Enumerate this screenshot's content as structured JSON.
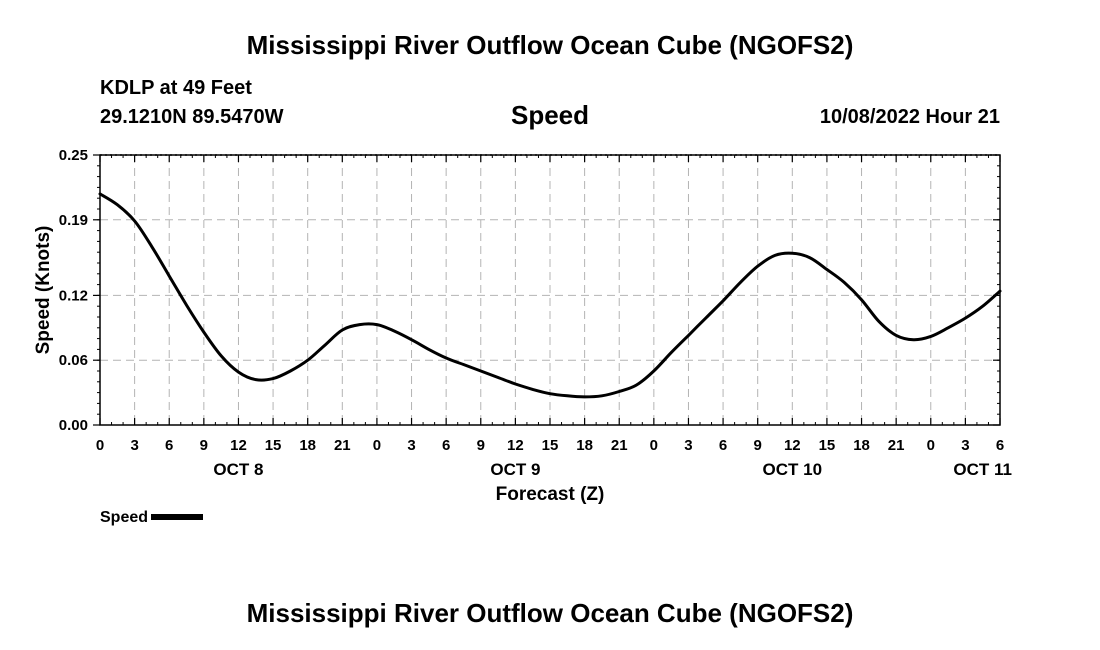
{
  "header": {
    "title": "Mississippi River Outflow Ocean Cube (NGOFS2)",
    "station": "KDLP at 49 Feet",
    "coords": "29.1210N  89.5470W",
    "subtitle": "Speed",
    "datetime": "10/08/2022 Hour 21"
  },
  "footer": {
    "title": "Mississippi River Outflow Ocean Cube (NGOFS2)"
  },
  "legend": {
    "label": "Speed",
    "color": "#000000"
  },
  "chart_data": {
    "type": "line",
    "title": "Speed",
    "xlabel": "Forecast (Z)",
    "ylabel": "Speed (Knots)",
    "xlim": [
      0,
      78
    ],
    "ylim": [
      0,
      0.25
    ],
    "grid": true,
    "yticks": [
      0.0,
      0.06,
      0.12,
      0.19,
      0.25
    ],
    "ytick_labels": [
      "0.00",
      "0.06",
      "0.12",
      "0.19",
      "0.25"
    ],
    "xtick_labels": [
      "0",
      "3",
      "6",
      "9",
      "12",
      "15",
      "18",
      "21",
      "0",
      "3",
      "6",
      "9",
      "12",
      "15",
      "18",
      "21",
      "0",
      "3",
      "6",
      "9",
      "12",
      "15",
      "18",
      "21",
      "0",
      "3",
      "6"
    ],
    "day_labels": [
      {
        "label": "OCT 8",
        "x": 12
      },
      {
        "label": "OCT 9",
        "x": 36
      },
      {
        "label": "OCT 10",
        "x": 60
      },
      {
        "label": "OCT 11",
        "x": 76.5
      }
    ],
    "series": [
      {
        "name": "Speed",
        "color": "#000000",
        "x": [
          0,
          1.5,
          3,
          4.5,
          6,
          7.5,
          9,
          10.5,
          12,
          13.5,
          15,
          16.5,
          18,
          19.5,
          21,
          22.5,
          24,
          25.5,
          27,
          28.5,
          30,
          31.5,
          33,
          34.5,
          36,
          37.5,
          39,
          40.5,
          42,
          43.5,
          45,
          46.5,
          48,
          49.5,
          51,
          52.5,
          54,
          55.5,
          57,
          58.5,
          60,
          61.5,
          63,
          64.5,
          66,
          67.5,
          69,
          70.5,
          72,
          73.5,
          75,
          76.5,
          78
        ],
        "values": [
          0.214,
          0.204,
          0.189,
          0.165,
          0.138,
          0.111,
          0.086,
          0.064,
          0.049,
          0.042,
          0.043,
          0.05,
          0.06,
          0.074,
          0.088,
          0.093,
          0.093,
          0.087,
          0.079,
          0.07,
          0.062,
          0.056,
          0.05,
          0.044,
          0.038,
          0.033,
          0.029,
          0.027,
          0.026,
          0.027,
          0.031,
          0.037,
          0.05,
          0.067,
          0.083,
          0.099,
          0.115,
          0.132,
          0.147,
          0.157,
          0.159,
          0.155,
          0.144,
          0.132,
          0.116,
          0.096,
          0.083,
          0.079,
          0.082,
          0.09,
          0.099,
          0.11,
          0.124
        ]
      }
    ]
  }
}
